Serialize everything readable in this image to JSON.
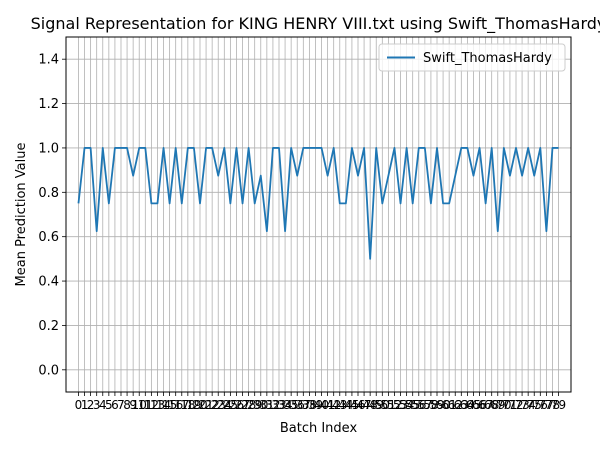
{
  "chart_data": {
    "type": "line",
    "title": "Signal Representation for KING HENRY VIII.txt using Swift_ThomasHardy",
    "xlabel": "Batch Index",
    "ylabel": "Mean Prediction Value",
    "ylim": [
      -0.1,
      1.5
    ],
    "xlim": [
      -2.05,
      81.05
    ],
    "yticks": [
      "0.0",
      "0.2",
      "0.4",
      "0.6",
      "0.8",
      "1.0",
      "1.2",
      "1.4"
    ],
    "ytick_values": [
      0.0,
      0.2,
      0.4,
      0.6,
      0.8,
      1.0,
      1.2,
      1.4
    ],
    "grid": true,
    "legend_position": "upper right",
    "series": [
      {
        "name": "Swift_ThomasHardy",
        "color": "#1f77b4",
        "x": [
          0,
          1,
          2,
          3,
          4,
          5,
          6,
          7,
          8,
          9,
          10,
          11,
          12,
          13,
          14,
          15,
          16,
          17,
          18,
          19,
          20,
          21,
          22,
          23,
          24,
          25,
          26,
          27,
          28,
          29,
          30,
          31,
          32,
          33,
          34,
          35,
          36,
          37,
          38,
          39,
          40,
          41,
          42,
          43,
          44,
          45,
          46,
          47,
          48,
          49,
          50,
          51,
          52,
          53,
          54,
          55,
          56,
          57,
          58,
          59,
          60,
          61,
          62,
          63,
          64,
          65,
          66,
          67,
          68,
          69,
          70,
          71,
          72,
          73,
          74,
          75,
          76,
          77,
          78,
          79
        ],
        "values": [
          0.75,
          1.0,
          1.0,
          0.625,
          1.0,
          0.75,
          1.0,
          1.0,
          1.0,
          0.875,
          1.0,
          1.0,
          0.75,
          0.75,
          1.0,
          0.75,
          1.0,
          0.75,
          1.0,
          1.0,
          0.75,
          1.0,
          1.0,
          0.875,
          1.0,
          0.75,
          1.0,
          0.75,
          1.0,
          0.75,
          0.875,
          0.625,
          1.0,
          1.0,
          0.625,
          1.0,
          0.875,
          1.0,
          1.0,
          1.0,
          1.0,
          0.875,
          1.0,
          0.75,
          0.75,
          1.0,
          0.875,
          1.0,
          0.5,
          1.0,
          0.75,
          0.875,
          1.0,
          0.75,
          1.0,
          0.75,
          1.0,
          1.0,
          0.75,
          1.0,
          0.75,
          0.75,
          0.875,
          1.0,
          1.0,
          0.875,
          1.0,
          0.75,
          1.0,
          0.625,
          1.0,
          0.875,
          1.0,
          0.875,
          1.0,
          0.875,
          1.0,
          0.625,
          1.0,
          1.0
        ]
      }
    ]
  }
}
